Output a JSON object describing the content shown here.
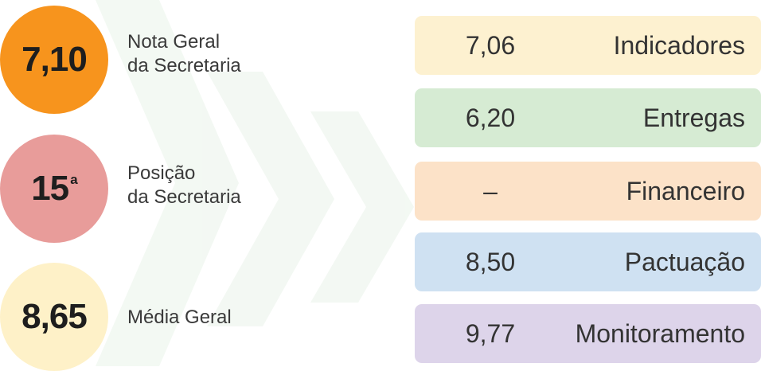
{
  "summary": [
    {
      "value": "7,10",
      "label": [
        "Nota Geral",
        "da Secretaria"
      ]
    },
    {
      "value": "15",
      "suffix": "ª",
      "label": [
        "Posição",
        "da Secretaria"
      ]
    },
    {
      "value": "8,65",
      "label": [
        "Média Geral"
      ]
    }
  ],
  "cards": [
    {
      "value": "7,06",
      "name": "Indicadores"
    },
    {
      "value": "6,20",
      "name": "Entregas"
    },
    {
      "value": "–",
      "name": "Financeiro"
    },
    {
      "value": "8,50",
      "name": "Pactuação"
    },
    {
      "value": "9,77",
      "name": "Monitoramento"
    }
  ]
}
